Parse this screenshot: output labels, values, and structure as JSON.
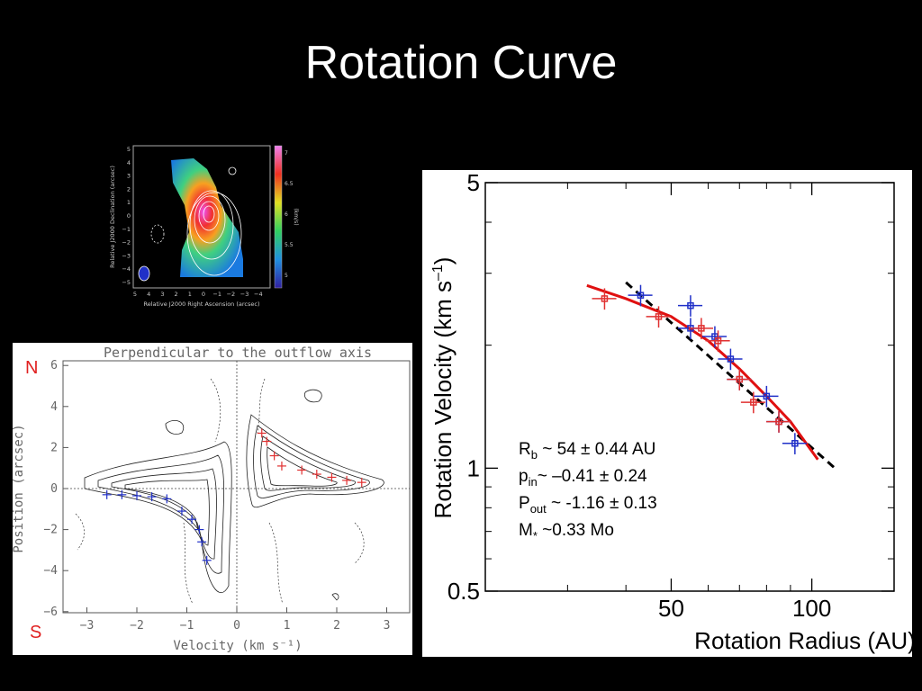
{
  "slide": {
    "title": "Rotation Curve"
  },
  "moment_map": {
    "ylabel": "Relative J2000 Declination (arcsec)",
    "xlabel": "Relative J2000 Right Ascension (arcsec)",
    "xticks": [
      "5",
      "4",
      "3",
      "2",
      "1",
      "0",
      "−1",
      "−2",
      "−3",
      "−4"
    ],
    "yticks": [
      "5",
      "4",
      "3",
      "2",
      "1",
      "0",
      "−1",
      "−2",
      "−3",
      "−4",
      "−5"
    ],
    "colorbar_ticks": [
      "7",
      "6.5",
      "6",
      "5.5",
      "5"
    ],
    "colorbar_label": "(km/s)"
  },
  "pv_diagram": {
    "title": "Perpendicular to the outflow axis",
    "xlabel": "Velocity (km s⁻¹)",
    "ylabel": "Position (arcsec)",
    "xticks": [
      "−3",
      "−2",
      "−1",
      "0",
      "1",
      "2",
      "3"
    ],
    "yticks": [
      "6",
      "4",
      "2",
      "0",
      "−2",
      "−4",
      "−6"
    ],
    "north_label": "N",
    "south_label": "S",
    "colors": {
      "label": "#e02020",
      "blue": "#2030c8",
      "red": "#e03030"
    }
  },
  "chart_data": {
    "type": "scatter",
    "xlabel": "Rotation Radius (AU)",
    "ylabel_main": "Rotation Velocity (km s",
    "ylabel_sup": "–1",
    "ylabel_close": ")",
    "xscale": "log",
    "yscale": "log",
    "xlim": [
      20,
      150
    ],
    "ylim": [
      0.5,
      5
    ],
    "xticks": [
      "50",
      "100"
    ],
    "yticks": [
      "5",
      "1",
      "0.5"
    ],
    "series": [
      {
        "color": "#2030c8",
        "points": [
          [
            43,
            2.65
          ],
          [
            55,
            2.5
          ],
          [
            55,
            2.2
          ],
          [
            62,
            2.1
          ],
          [
            67,
            1.85
          ],
          [
            70,
            1.65
          ],
          [
            80,
            1.5
          ],
          [
            85,
            1.3
          ],
          [
            92,
            1.15
          ]
        ]
      },
      {
        "color": "#e03030",
        "points": [
          [
            36,
            2.6
          ],
          [
            47,
            2.35
          ],
          [
            58,
            2.2
          ],
          [
            63,
            2.05
          ],
          [
            70,
            1.65
          ],
          [
            75,
            1.45
          ],
          [
            85,
            1.3
          ]
        ]
      }
    ],
    "fit_power_law": {
      "color": "#000000",
      "points": [
        [
          40,
          2.85
        ],
        [
          112,
          1.0
        ]
      ]
    },
    "fit_broken": {
      "color": "#e01010",
      "points": [
        [
          33,
          2.8
        ],
        [
          40,
          2.6
        ],
        [
          50,
          2.35
        ],
        [
          60,
          2.05
        ],
        [
          70,
          1.75
        ],
        [
          80,
          1.5
        ],
        [
          90,
          1.3
        ],
        [
          103,
          1.05
        ]
      ]
    },
    "annotations": {
      "rb": {
        "main": "R",
        "sub": "b",
        "rest": " ~ 54 ± 0.44 AU"
      },
      "pin": {
        "main": "p",
        "sub": "in",
        "rest": "~ –0.41 ± 0.24"
      },
      "pout": {
        "main": "P",
        "sub": "out",
        "rest": " ~ -1.16 ± 0.13"
      },
      "mass": {
        "main": "M",
        "sub": "*",
        "rest": " ~0.33 Mo"
      }
    }
  }
}
